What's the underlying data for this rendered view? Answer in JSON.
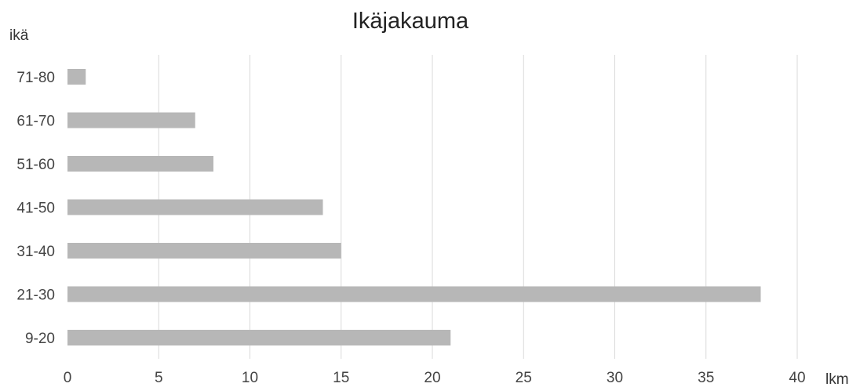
{
  "chart_data": {
    "type": "bar",
    "orientation": "horizontal",
    "title": "Ikäjakauma",
    "ylabel": "ikä",
    "xlabel": "lkm",
    "categories": [
      "71-80",
      "61-70",
      "51-60",
      "41-50",
      "31-40",
      "21-30",
      "9-20"
    ],
    "values": [
      1,
      7,
      8,
      14,
      15,
      38,
      21
    ],
    "xlim": [
      0,
      40
    ],
    "xticks": [
      "0",
      "5",
      "10",
      "15",
      "20",
      "25",
      "30",
      "35",
      "40"
    ],
    "grid": "vertical",
    "bar_color": "#b7b7b7"
  }
}
